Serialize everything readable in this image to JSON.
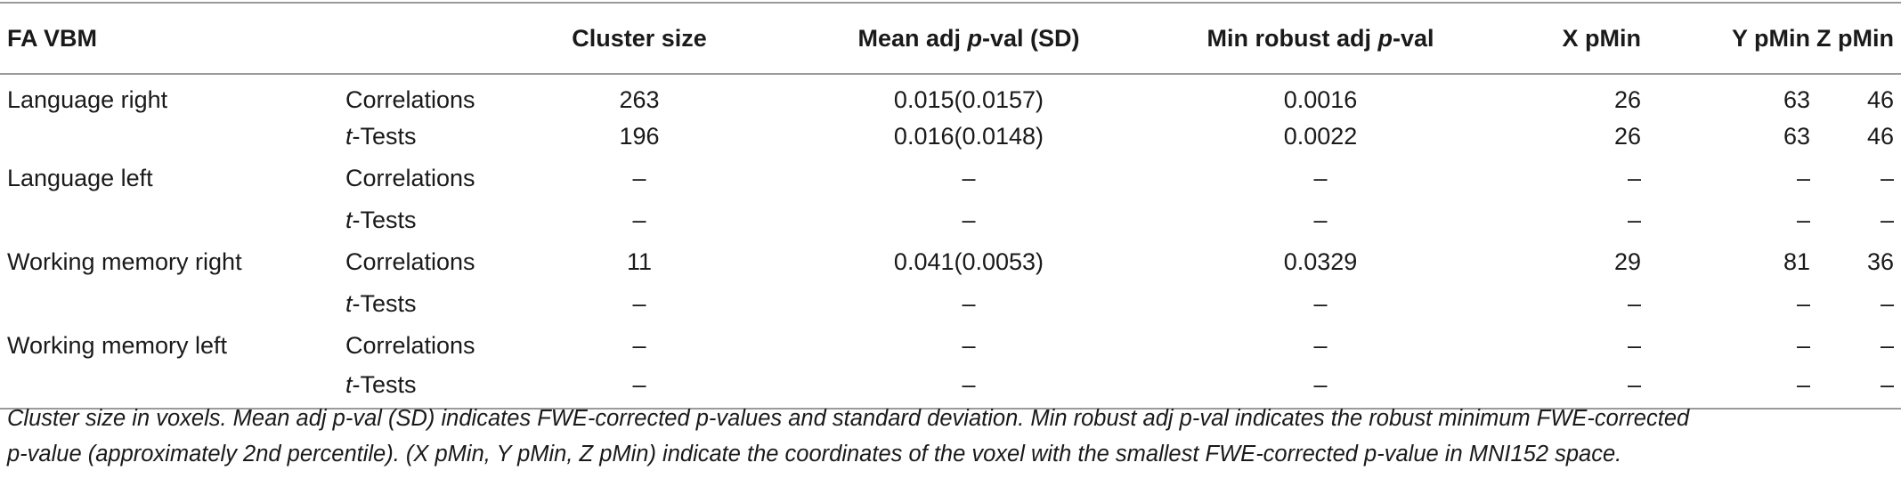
{
  "table": {
    "headers": {
      "region": "FA VBM",
      "test": "",
      "cluster_size": "Cluster size",
      "mean_pre": "Mean adj ",
      "mean_italic": "p",
      "mean_post": "-val (SD)",
      "min_pre": "Min robust adj ",
      "min_italic": "p",
      "min_post": "-val",
      "x": "X pMin",
      "y": "Y pMin",
      "z": "Z pMin"
    },
    "rows": [
      {
        "region": "Language right",
        "test_italic": "",
        "test": "Correlations",
        "cluster_size": "263",
        "mean": "0.015(0.0157)",
        "min": "0.0016",
        "x": "26",
        "y": "63",
        "z": "46"
      },
      {
        "region": "",
        "test_italic": "t",
        "test": "-Tests",
        "cluster_size": "196",
        "mean": "0.016(0.0148)",
        "min": "0.0022",
        "x": "26",
        "y": "63",
        "z": "46"
      },
      {
        "region": "Language left",
        "test_italic": "",
        "test": "Correlations",
        "cluster_size": "–",
        "mean": "–",
        "min": "–",
        "x": "–",
        "y": "–",
        "z": "–"
      },
      {
        "region": "",
        "test_italic": "t",
        "test": "-Tests",
        "cluster_size": "–",
        "mean": "–",
        "min": "–",
        "x": "–",
        "y": "–",
        "z": "–"
      },
      {
        "region": "Working memory right",
        "test_italic": "",
        "test": "Correlations",
        "cluster_size": "11",
        "mean": "0.041(0.0053)",
        "min": "0.0329",
        "x": "29",
        "y": "81",
        "z": "36"
      },
      {
        "region": "",
        "test_italic": "t",
        "test": "-Tests",
        "cluster_size": "–",
        "mean": "–",
        "min": "–",
        "x": "–",
        "y": "–",
        "z": "–"
      },
      {
        "region": "Working memory left",
        "test_italic": "",
        "test": "Correlations",
        "cluster_size": "–",
        "mean": "–",
        "min": "–",
        "x": "–",
        "y": "–",
        "z": "–"
      },
      {
        "region": "",
        "test_italic": "t",
        "test": "-Tests",
        "cluster_size": "–",
        "mean": "–",
        "min": "–",
        "x": "–",
        "y": "–",
        "z": "–"
      }
    ]
  },
  "footnote": {
    "line1": "Cluster size in voxels. Mean adj p-val (SD) indicates FWE-corrected p-values and standard deviation. Min robust adj p-val indicates the robust minimum FWE-corrected",
    "line2": "p-value (approximately 2nd percentile). (X pMin, Y pMin, Z pMin) indicate the coordinates of the voxel with the smallest FWE-corrected p-value in MNI152 space."
  }
}
